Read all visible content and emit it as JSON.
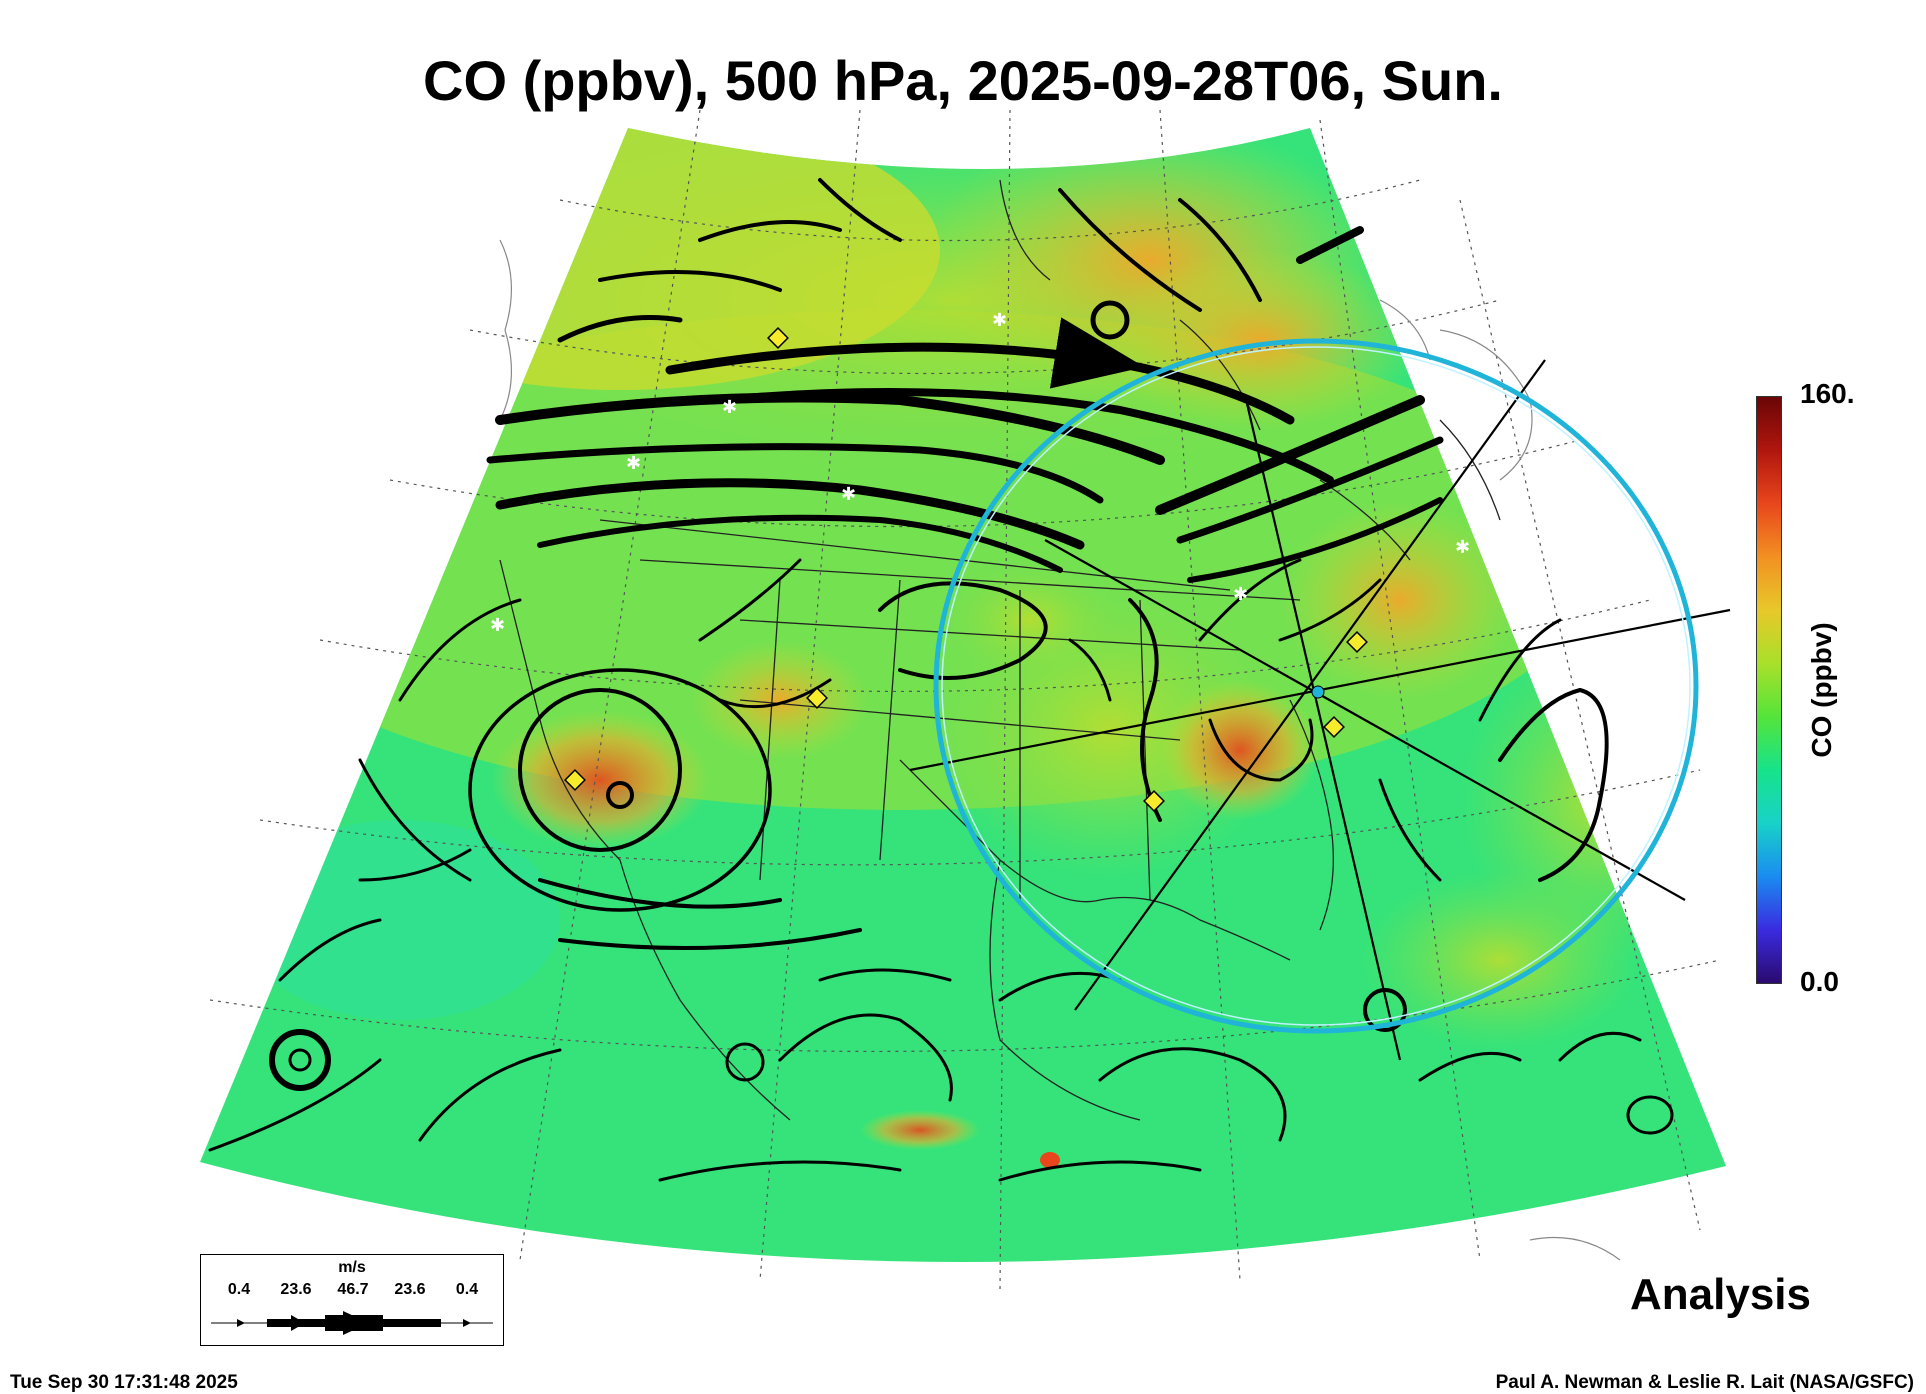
{
  "title": "CO (ppbv), 500 hPa, 2025-09-28T06, Sun.",
  "colorbar": {
    "max_label": "160.",
    "min_label": "0.0",
    "title": "CO (ppbv)",
    "colors": [
      "#2a0a6e",
      "#3a2be0",
      "#1a8cf0",
      "#18d2c8",
      "#17e38a",
      "#55e43a",
      "#a9e02a",
      "#e8c82a",
      "#f29022",
      "#e8461c",
      "#b0160e",
      "#6a0606"
    ]
  },
  "legend": {
    "units": "m/s",
    "values": [
      "0.4",
      "23.6",
      "46.7",
      "23.6",
      "0.4"
    ]
  },
  "analysis_label": "Analysis",
  "timestamp": "Tue Sep 30 17:31:48 2025",
  "credit": "Paul A. Newman & Leslie R. Lait (NASA/GSFC)",
  "map": {
    "projection": "conic",
    "field_colors": {
      "background_green": "#35e37a",
      "mid_green": "#7fe04a",
      "yellow": "#c9dc2e",
      "orange": "#f0a82a",
      "red": "#e8461c"
    },
    "overlay_circle_color": "#1fb4d8",
    "marker_colors": {
      "diamond": "#f6ec2c",
      "star": "#ffffff"
    }
  }
}
